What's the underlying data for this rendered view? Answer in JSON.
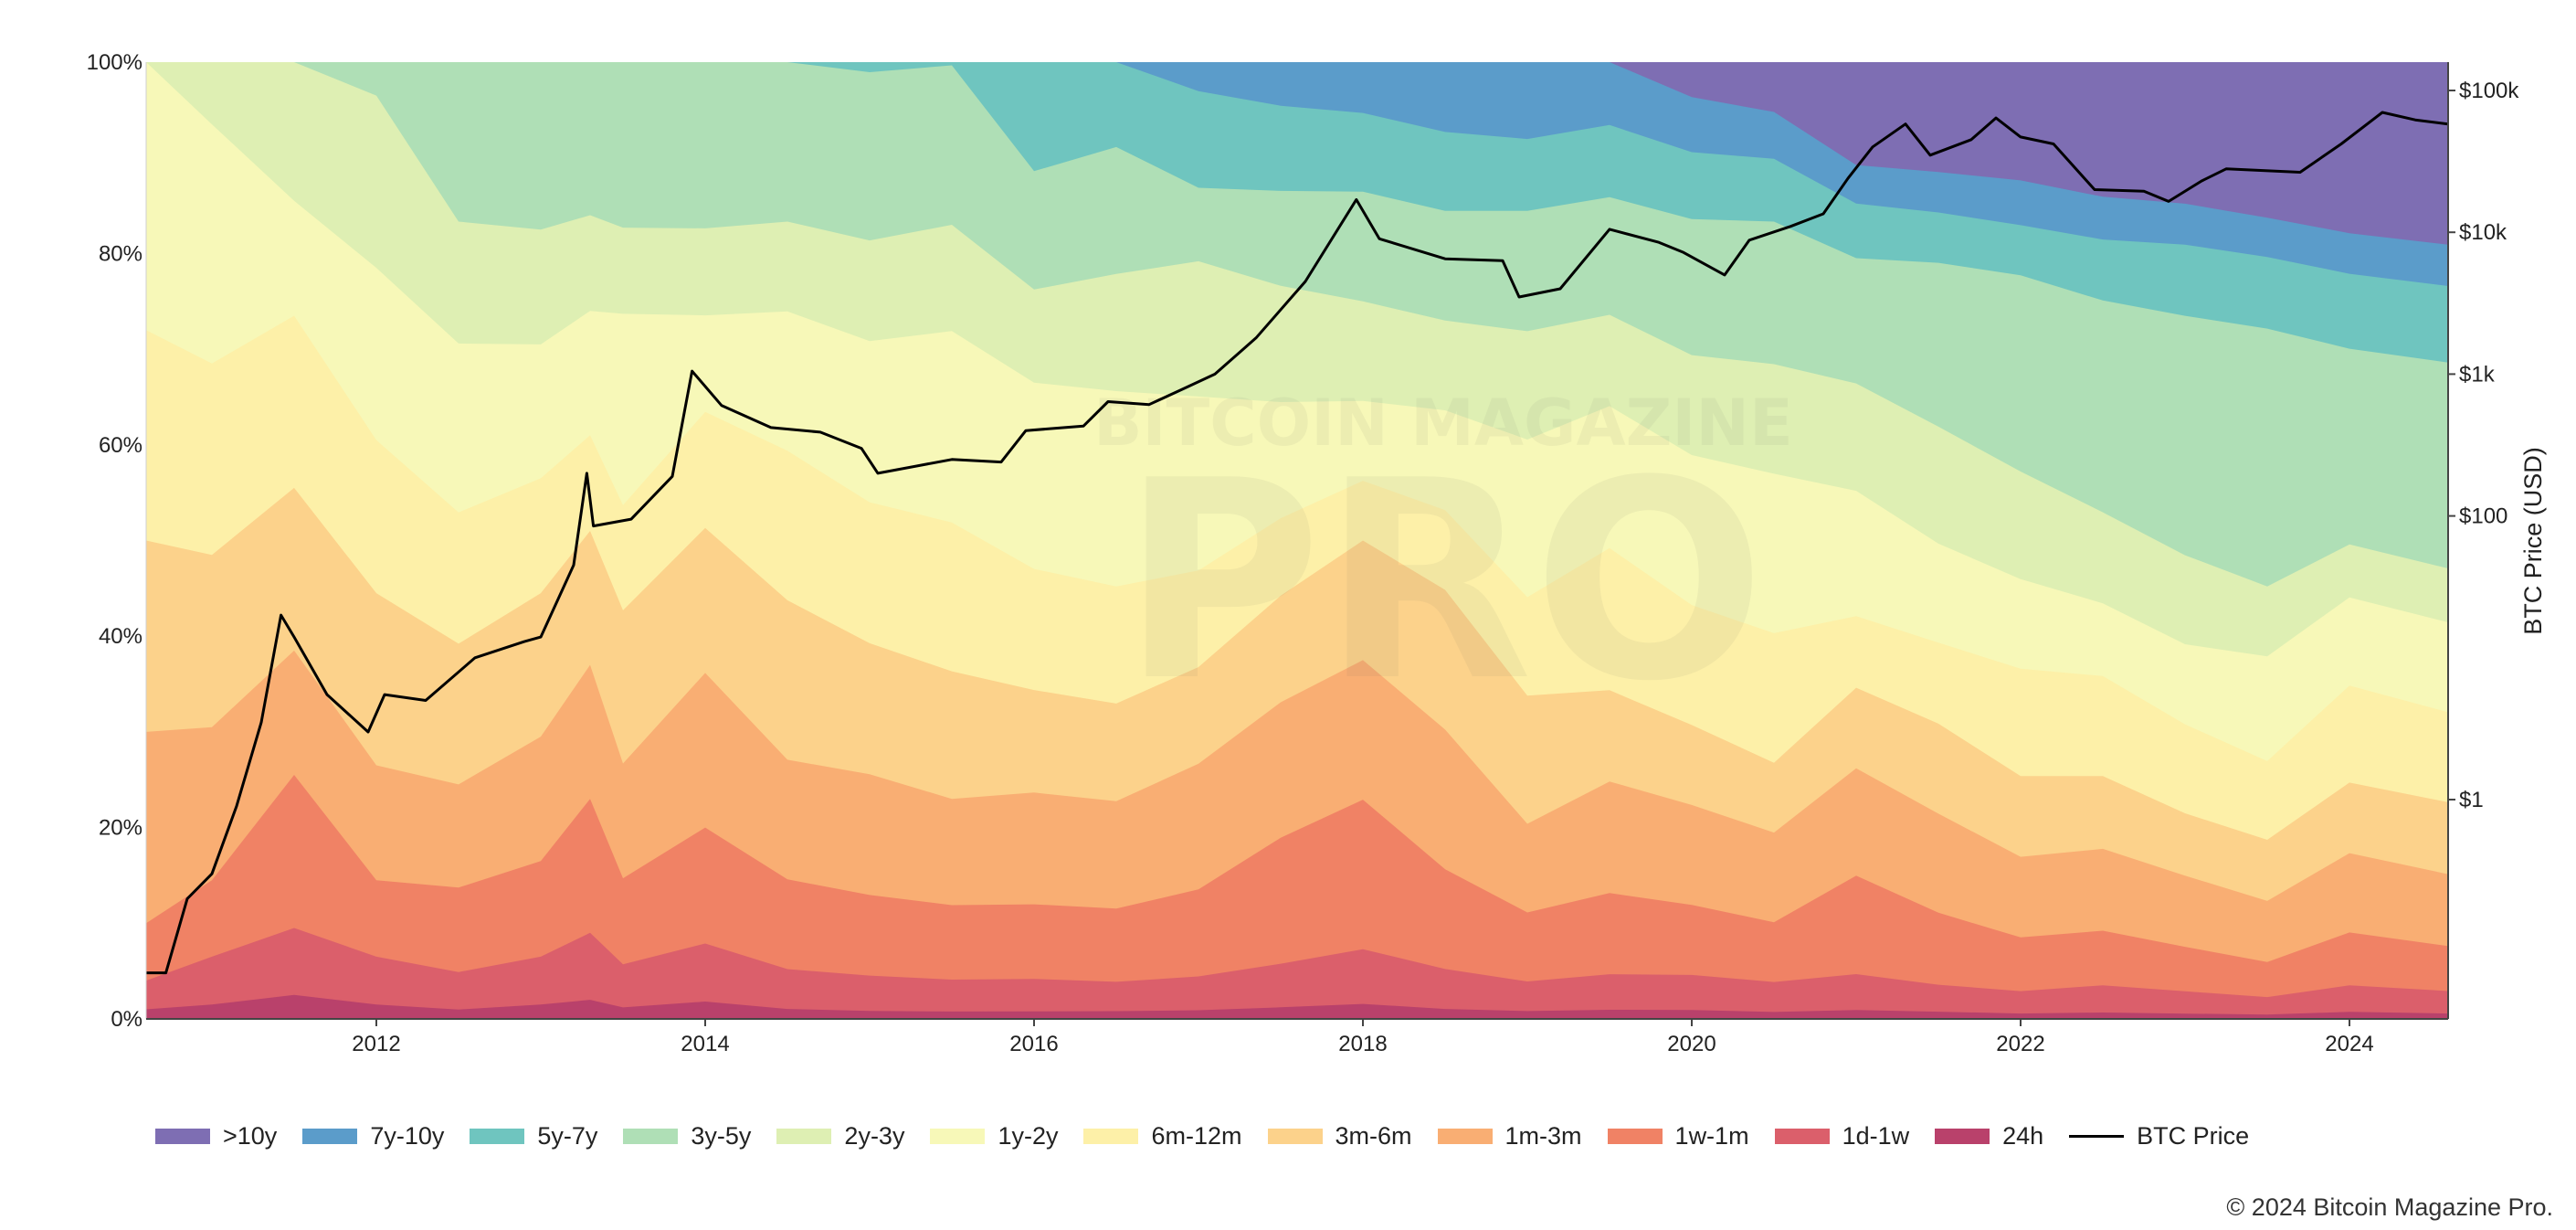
{
  "chart_data": {
    "type": "area",
    "stacked": true,
    "normalized": true,
    "x": [
      2010.6,
      2011.0,
      2011.5,
      2012.0,
      2012.5,
      2013.0,
      2013.3,
      2013.5,
      2014.0,
      2014.5,
      2015.0,
      2015.5,
      2016.0,
      2016.5,
      2017.0,
      2017.5,
      2018.0,
      2018.5,
      2019.0,
      2019.5,
      2020.0,
      2020.5,
      2021.0,
      2021.5,
      2022.0,
      2022.5,
      2023.0,
      2023.5,
      2024.0,
      2024.6
    ],
    "series": [
      {
        "name": "24h",
        "color": "#b9416b",
        "values": [
          1.0,
          1.5,
          2.5,
          1.5,
          1.0,
          1.5,
          2.0,
          1.2,
          1.8,
          1.0,
          0.8,
          0.7,
          0.8,
          0.8,
          0.9,
          1.2,
          1.5,
          1.0,
          0.8,
          0.9,
          0.9,
          0.7,
          1.0,
          0.8,
          0.6,
          0.7,
          0.6,
          0.5,
          0.8,
          0.6
        ]
      },
      {
        "name": "1d-1w",
        "color": "#db5f6b",
        "values": [
          3.0,
          5.0,
          7.0,
          5.0,
          4.0,
          5.0,
          7.0,
          4.5,
          6.0,
          4.0,
          3.5,
          3.0,
          3.5,
          3.0,
          3.5,
          4.5,
          5.5,
          4.0,
          3.0,
          3.5,
          3.5,
          3.0,
          4.0,
          3.0,
          2.5,
          3.0,
          2.5,
          2.0,
          3.0,
          2.5
        ]
      },
      {
        "name": "1w-1m",
        "color": "#f08265",
        "values": [
          6.0,
          8.0,
          16.0,
          8.0,
          9.0,
          10.0,
          14.0,
          9.0,
          12.0,
          9.0,
          8.0,
          7.0,
          8.0,
          7.5,
          9.0,
          13.0,
          15.0,
          10.0,
          7.0,
          8.0,
          7.0,
          6.0,
          11.0,
          8.0,
          6.0,
          6.0,
          5.0,
          4.0,
          6.0,
          5.0
        ]
      },
      {
        "name": "1m-3m",
        "color": "#f9ae73",
        "values": [
          20.0,
          16.0,
          13.0,
          12.0,
          11.0,
          13.0,
          14.0,
          12.0,
          16.0,
          12.0,
          12.0,
          10.0,
          12.0,
          11.0,
          13.0,
          14.0,
          14.0,
          14.0,
          9.0,
          11.0,
          10.0,
          9.0,
          12.0,
          11.0,
          9.0,
          9.0,
          8.0,
          7.0,
          9.0,
          8.0
        ]
      },
      {
        "name": "3m-6m",
        "color": "#fcd28b",
        "values": [
          20.0,
          18.0,
          17.0,
          18.0,
          15.0,
          15.0,
          14.0,
          16.0,
          15.0,
          16.0,
          13.0,
          12.0,
          11.0,
          10.0,
          10.0,
          11.0,
          12.0,
          14.0,
          13.0,
          9.0,
          8.0,
          7.0,
          9.0,
          10.0,
          9.0,
          8.0,
          7.0,
          7.0,
          8.0,
          8.0
        ]
      },
      {
        "name": "6m-12m",
        "color": "#fdf0a8",
        "values": [
          22.0,
          20.0,
          18.0,
          16.0,
          14.0,
          12.0,
          10.0,
          11.0,
          12.0,
          15.0,
          14.0,
          14.0,
          13.0,
          12.0,
          10.0,
          8.0,
          6.0,
          8.0,
          10.0,
          14.0,
          12.0,
          13.0,
          8.0,
          9.0,
          12.0,
          11.0,
          10.0,
          9.0,
          11.0,
          10.0
        ]
      },
      {
        "name": "1y-2y",
        "color": "#f7f8b8",
        "values": [
          28.0,
          25.0,
          12.0,
          18.0,
          18.0,
          14.0,
          13.0,
          20.0,
          10.0,
          14.0,
          16.0,
          18.0,
          20.0,
          20.0,
          18.0,
          12.0,
          8.0,
          10.0,
          16.0,
          14.0,
          15.0,
          16.0,
          14.0,
          11.0,
          10.0,
          8.0,
          9.0,
          12.0,
          10.0,
          10.0
        ]
      },
      {
        "name": "2y-3y",
        "color": "#deefb3",
        "values": [
          0.0,
          6.5,
          14.5,
          18.0,
          13.0,
          12.0,
          10.0,
          9.0,
          9.0,
          9.0,
          10.0,
          10.0,
          10.0,
          12.0,
          14.0,
          12.0,
          10.0,
          9.0,
          11.0,
          9.0,
          10.0,
          11.0,
          12.0,
          13.0,
          12.0,
          10.0,
          10.0,
          8.0,
          6.0,
          6.0
        ]
      },
      {
        "name": "3y-5y",
        "color": "#afdfb6",
        "values": [
          0.0,
          0.0,
          0.0,
          3.5,
          17.0,
          17.5,
          16.0,
          17.3,
          17.2,
          16.0,
          16.7,
          15.0,
          12.7,
          13.0,
          7.6,
          9.8,
          11.0,
          11.0,
          12.2,
          11.6,
          13.6,
          14.3,
          14.0,
          18.2,
          21.9,
          23.3,
          26.9,
          29.5,
          22.2,
          22.9
        ]
      },
      {
        "name": "5y-7y",
        "color": "#6fc5bf",
        "values": [
          0.0,
          0.0,
          0.0,
          0.0,
          0.0,
          0.0,
          0.0,
          0.0,
          0.0,
          0.0,
          1.0,
          0.3,
          11.7,
          8.7,
          10.0,
          8.8,
          7.9,
          7.9,
          7.3,
          7.1,
          6.7,
          6.3,
          6.1,
          5.6,
          5.6,
          6.7,
          8.0,
          8.2,
          8.5,
          8.5
        ]
      },
      {
        "name": "7y-10y",
        "color": "#5b9cca",
        "values": [
          0.0,
          0.0,
          0.0,
          0.0,
          0.0,
          0.0,
          0.0,
          0.0,
          0.0,
          0.0,
          0.0,
          0.0,
          0.0,
          0.0,
          3.0,
          4.5,
          5.1,
          7.0,
          7.8,
          6.2,
          5.5,
          4.7,
          4.3,
          4.5,
          5.0,
          4.7,
          4.6,
          4.5,
          4.6,
          4.6
        ]
      },
      {
        "name": ">10y",
        "color": "#7e6eb3",
        "values": [
          0.0,
          0.0,
          0.0,
          0.0,
          0.0,
          0.0,
          0.0,
          0.0,
          0.0,
          0.0,
          0.0,
          0.0,
          0.0,
          0.0,
          0.0,
          0.0,
          0.0,
          0.0,
          0.0,
          0.0,
          3.5,
          5.0,
          11.5,
          12.2,
          13.2,
          14.8,
          15.9,
          17.8,
          19.4,
          20.3
        ]
      }
    ],
    "btc_price": {
      "name": "BTC Price",
      "color": "#000000",
      "points": [
        [
          2010.6,
          0.06
        ],
        [
          2010.72,
          0.06
        ],
        [
          2010.85,
          0.2
        ],
        [
          2011.0,
          0.3
        ],
        [
          2011.15,
          0.9
        ],
        [
          2011.3,
          3.5
        ],
        [
          2011.42,
          20.0
        ],
        [
          2011.5,
          14.0
        ],
        [
          2011.7,
          5.5
        ],
        [
          2011.95,
          3.0
        ],
        [
          2012.05,
          5.5
        ],
        [
          2012.3,
          5.0
        ],
        [
          2012.6,
          10.0
        ],
        [
          2012.9,
          13.0
        ],
        [
          2013.0,
          14.0
        ],
        [
          2013.2,
          45.0
        ],
        [
          2013.28,
          200.0
        ],
        [
          2013.32,
          85.0
        ],
        [
          2013.55,
          95.0
        ],
        [
          2013.8,
          190.0
        ],
        [
          2013.92,
          1050.0
        ],
        [
          2014.1,
          600.0
        ],
        [
          2014.4,
          420.0
        ],
        [
          2014.7,
          390.0
        ],
        [
          2014.95,
          300.0
        ],
        [
          2015.05,
          200.0
        ],
        [
          2015.5,
          250.0
        ],
        [
          2015.8,
          240.0
        ],
        [
          2015.95,
          400.0
        ],
        [
          2016.3,
          430.0
        ],
        [
          2016.45,
          640.0
        ],
        [
          2016.7,
          610.0
        ],
        [
          2016.9,
          780.0
        ],
        [
          2017.1,
          1000.0
        ],
        [
          2017.35,
          1800.0
        ],
        [
          2017.65,
          4500.0
        ],
        [
          2017.96,
          17000.0
        ],
        [
          2018.1,
          9000.0
        ],
        [
          2018.5,
          6500.0
        ],
        [
          2018.85,
          6300.0
        ],
        [
          2018.95,
          3500.0
        ],
        [
          2019.2,
          4000.0
        ],
        [
          2019.5,
          10500.0
        ],
        [
          2019.8,
          8500.0
        ],
        [
          2019.95,
          7200.0
        ],
        [
          2020.2,
          5000.0
        ],
        [
          2020.35,
          8800.0
        ],
        [
          2020.6,
          11000.0
        ],
        [
          2020.8,
          13500.0
        ],
        [
          2020.95,
          24000.0
        ],
        [
          2021.1,
          40000.0
        ],
        [
          2021.3,
          58000.0
        ],
        [
          2021.45,
          35000.0
        ],
        [
          2021.7,
          45000.0
        ],
        [
          2021.85,
          64000.0
        ],
        [
          2022.0,
          47000.0
        ],
        [
          2022.2,
          42000.0
        ],
        [
          2022.45,
          20000.0
        ],
        [
          2022.75,
          19500.0
        ],
        [
          2022.9,
          16500.0
        ],
        [
          2023.1,
          23000.0
        ],
        [
          2023.25,
          28000.0
        ],
        [
          2023.7,
          26500.0
        ],
        [
          2023.95,
          42000.0
        ],
        [
          2024.2,
          70000.0
        ],
        [
          2024.4,
          62000.0
        ],
        [
          2024.6,
          58000.0
        ]
      ]
    },
    "x_ticks": [
      "2012",
      "2014",
      "2016",
      "2018",
      "2020",
      "2022",
      "2024"
    ],
    "y_ticks": [
      "0%",
      "20%",
      "40%",
      "60%",
      "80%",
      "100%"
    ],
    "y2_ticks": [
      "$1",
      "$100",
      "$1k",
      "$10k",
      "$100k"
    ],
    "y2_tick_values": [
      1,
      100,
      1000,
      10000,
      100000
    ],
    "y2label": "BTC Price (USD)",
    "ylim": [
      0,
      100
    ],
    "y2_scale": "log",
    "legend_position": "bottom"
  },
  "watermark": {
    "line1": "BITCOIN MAGAZINE",
    "line2": "PRO"
  },
  "footer": {
    "copyright": "© 2024 Bitcoin Magazine Pro."
  }
}
